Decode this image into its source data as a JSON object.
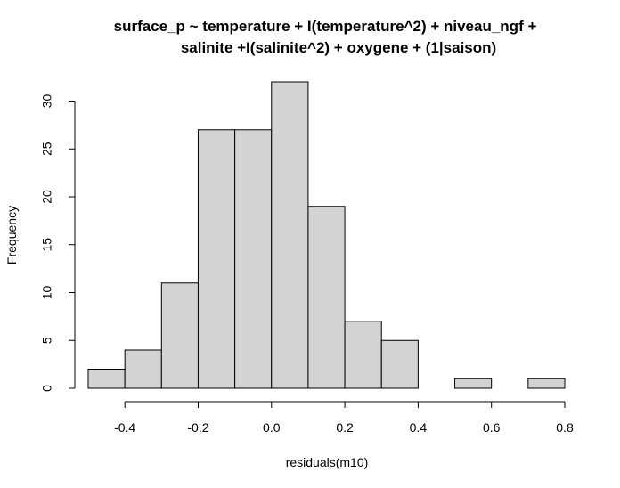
{
  "chart_data": {
    "type": "bar",
    "title_lines": [
      "surface_p ~ temperature + I(temperature^2) + niveau_ngf +",
      "salinite +I(salinite^2) + oxygene + (1|saison)"
    ],
    "xlabel": "residuals(m10)",
    "ylabel": "Frequency",
    "bins": [
      {
        "x0": -0.5,
        "x1": -0.4,
        "count": 2
      },
      {
        "x0": -0.4,
        "x1": -0.3,
        "count": 4
      },
      {
        "x0": -0.3,
        "x1": -0.2,
        "count": 11
      },
      {
        "x0": -0.2,
        "x1": -0.1,
        "count": 27
      },
      {
        "x0": -0.1,
        "x1": 0.0,
        "count": 27
      },
      {
        "x0": 0.0,
        "x1": 0.1,
        "count": 32
      },
      {
        "x0": 0.1,
        "x1": 0.2,
        "count": 19
      },
      {
        "x0": 0.2,
        "x1": 0.3,
        "count": 7
      },
      {
        "x0": 0.3,
        "x1": 0.4,
        "count": 5
      },
      {
        "x0": 0.4,
        "x1": 0.5,
        "count": 0
      },
      {
        "x0": 0.5,
        "x1": 0.6,
        "count": 1
      },
      {
        "x0": 0.6,
        "x1": 0.7,
        "count": 0
      },
      {
        "x0": 0.7,
        "x1": 0.8,
        "count": 1
      }
    ],
    "x_ticks": [
      {
        "value": -0.4,
        "label": "-0.4"
      },
      {
        "value": -0.2,
        "label": "-0.2"
      },
      {
        "value": 0.0,
        "label": "0.0"
      },
      {
        "value": 0.2,
        "label": "0.2"
      },
      {
        "value": 0.4,
        "label": "0.4"
      },
      {
        "value": 0.6,
        "label": "0.6"
      },
      {
        "value": 0.8,
        "label": "0.8"
      }
    ],
    "y_ticks": [
      {
        "value": 0,
        "label": "0"
      },
      {
        "value": 5,
        "label": "5"
      },
      {
        "value": 10,
        "label": "10"
      },
      {
        "value": 15,
        "label": "15"
      },
      {
        "value": 20,
        "label": "20"
      },
      {
        "value": 25,
        "label": "25"
      },
      {
        "value": 30,
        "label": "30"
      }
    ],
    "xlim": [
      -0.5,
      0.8
    ],
    "ylim": [
      0,
      32
    ],
    "grid": false,
    "bar_color": "#d3d3d3"
  }
}
